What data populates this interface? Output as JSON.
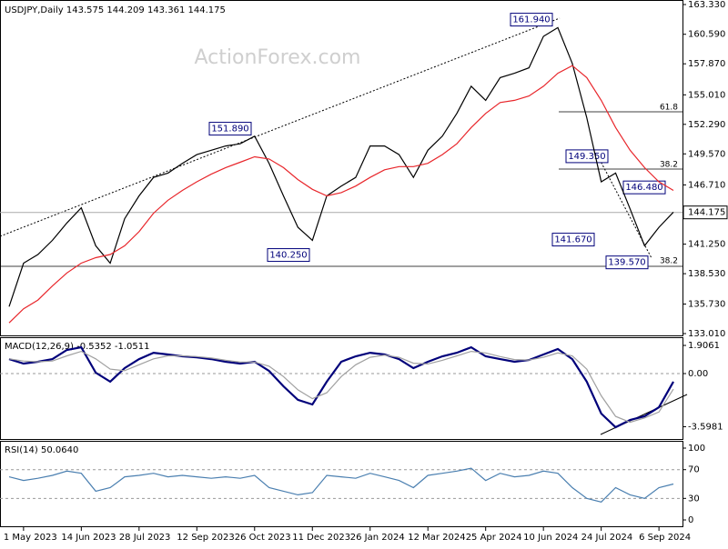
{
  "chart_data": [
    {
      "type": "line",
      "title": "USDJPY,Daily  143.575 144.209 143.361 144.175",
      "watermark": "ActionForex.com",
      "categories": [
        null,
        "1 May 2023",
        null,
        null,
        null,
        "14 Jun 2023",
        null,
        null,
        null,
        "28 Jul 2023",
        null,
        null,
        null,
        "12 Sep 2023",
        null,
        null,
        null,
        "26 Oct 2023",
        null,
        null,
        null,
        "11 Dec 2023",
        null,
        null,
        null,
        "26 Jan 2024",
        null,
        null,
        null,
        "12 Mar 2024",
        null,
        null,
        null,
        "25 Apr 2024",
        null,
        null,
        null,
        "10 Jun 2024",
        null,
        null,
        null,
        "24 Jul 2024",
        null,
        null,
        null,
        "6 Sep 2024",
        null
      ],
      "series": [
        {
          "color": "#000000",
          "values": [
            135.5,
            139.5,
            140.3,
            141.6,
            143.2,
            144.6,
            141.1,
            139.5,
            143.6,
            145.7,
            147.4,
            147.8,
            148.7,
            149.5,
            149.9,
            150.3,
            150.5,
            151.2,
            148.7,
            145.7,
            142.8,
            141.6,
            145.7,
            146.6,
            147.4,
            150.3,
            150.3,
            149.5,
            147.4,
            149.9,
            151.2,
            153.3,
            155.8,
            154.5,
            156.6,
            157.0,
            157.5,
            160.4,
            161.2,
            157.9,
            152.9,
            147.0,
            147.8,
            144.5,
            141.1,
            142.8,
            144.2
          ]
        },
        {
          "color": "#e8262b",
          "values": [
            134.0,
            135.3,
            136.1,
            137.4,
            138.6,
            139.5,
            140.0,
            140.3,
            141.1,
            142.4,
            144.1,
            145.3,
            146.2,
            147.0,
            147.7,
            148.3,
            148.8,
            149.3,
            149.1,
            148.3,
            147.2,
            146.3,
            145.7,
            146.0,
            146.6,
            147.4,
            148.1,
            148.4,
            148.4,
            148.7,
            149.5,
            150.5,
            152.0,
            153.3,
            154.3,
            154.5,
            154.9,
            155.8,
            157.0,
            157.7,
            156.6,
            154.5,
            152.0,
            149.9,
            148.3,
            147.0,
            146.2
          ]
        }
      ],
      "ylim": [
        133.01,
        163.33
      ],
      "yticks": [
        {
          "value": 163.33,
          "label": "163.330"
        },
        {
          "value": 160.59,
          "label": "160.590"
        },
        {
          "value": 157.87,
          "label": "157.870"
        },
        {
          "value": 155.01,
          "label": "155.010"
        },
        {
          "value": 152.29,
          "label": "152.290"
        },
        {
          "value": 149.57,
          "label": "149.570"
        },
        {
          "value": 146.71,
          "label": "146.710"
        },
        {
          "value": 141.25,
          "label": "141.250"
        },
        {
          "value": 138.53,
          "label": "138.530"
        },
        {
          "value": 135.73,
          "label": "135.730"
        },
        {
          "value": 133.01,
          "label": "133.010"
        }
      ],
      "last_price": 144.175,
      "annotations": [
        {
          "value": 161.94,
          "label": "161.940"
        },
        {
          "value": 151.89,
          "label": "151.890"
        },
        {
          "value": 140.25,
          "label": "140.250"
        },
        {
          "value": 149.35,
          "label": "149.350"
        },
        {
          "value": 146.48,
          "label": "146.480"
        },
        {
          "value": 141.67,
          "label": "141.670"
        },
        {
          "value": 139.57,
          "label": "139.570"
        }
      ],
      "fib_levels": [
        61.8,
        38.2,
        38.2
      ]
    },
    {
      "type": "line",
      "title": "MACD(12,26,9) -0.5352 -1.0511",
      "series": [
        {
          "color": "#00007a",
          "values": [
            0.98,
            0.68,
            0.8,
            0.98,
            1.6,
            1.78,
            0.06,
            -0.55,
            0.37,
            0.98,
            1.41,
            1.29,
            1.17,
            1.1,
            0.98,
            0.8,
            0.68,
            0.8,
            0.18,
            -0.86,
            -1.78,
            -2.09,
            -0.55,
            0.8,
            1.17,
            1.41,
            1.29,
            0.98,
            0.37,
            0.8,
            1.17,
            1.41,
            1.78,
            1.17,
            0.98,
            0.8,
            0.92,
            1.29,
            1.66,
            0.98,
            -0.55,
            -2.71,
            -3.63,
            -3.14,
            -2.89,
            -2.28,
            -0.55
          ]
        },
        {
          "color": "#a0a0a0",
          "values": [
            1.0,
            0.85,
            0.8,
            0.85,
            1.2,
            1.5,
            1.0,
            0.3,
            0.2,
            0.6,
            1.0,
            1.2,
            1.2,
            1.15,
            1.05,
            0.9,
            0.78,
            0.78,
            0.5,
            -0.2,
            -1.1,
            -1.7,
            -1.3,
            -0.2,
            0.6,
            1.1,
            1.25,
            1.1,
            0.7,
            0.65,
            0.9,
            1.2,
            1.5,
            1.4,
            1.15,
            0.95,
            0.92,
            1.1,
            1.4,
            1.2,
            0.3,
            -1.5,
            -2.9,
            -3.3,
            -3.0,
            -2.6,
            -1.0511
          ]
        }
      ],
      "ylim": [
        -4.43,
        2.4
      ],
      "yticks": [
        1.9061,
        {
          "value": 0,
          "label": "0.00"
        },
        -3.5981
      ]
    },
    {
      "type": "line",
      "title": "RSI(14) 50.0640",
      "series": [
        {
          "color": "#4a7fb0",
          "values": [
            60,
            55,
            58,
            62,
            68,
            65,
            40,
            45,
            60,
            62,
            65,
            60,
            62,
            60,
            58,
            60,
            58,
            62,
            45,
            40,
            35,
            38,
            62,
            60,
            58,
            65,
            60,
            55,
            45,
            62,
            65,
            68,
            72,
            55,
            65,
            60,
            62,
            68,
            65,
            45,
            30,
            25,
            45,
            35,
            30,
            45,
            50.064
          ]
        }
      ],
      "ylim": [
        -10.1,
        107.6
      ],
      "yticks": [
        100,
        70,
        30,
        0
      ]
    }
  ]
}
